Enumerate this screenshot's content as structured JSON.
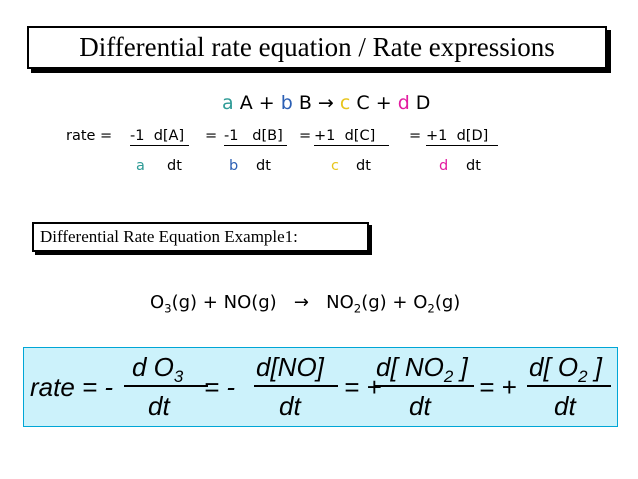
{
  "colors": {
    "a": "#2e9b96",
    "b": "#2b5fb4",
    "c": "#e8c51c",
    "d": "#e31ba0",
    "equation_bg": "#ccf2fb",
    "equation_border": "#00a6d6"
  },
  "title": "Differential rate equation / Rate expressions",
  "general_reaction": {
    "a": "a",
    "A": "A",
    "plus1": "+",
    "b": "b",
    "B": "B",
    "arrow": "→",
    "c": "c",
    "C": "C",
    "plus2": "+",
    "d": "d",
    "D": "D"
  },
  "rate_expr": {
    "label": "rate =",
    "term1_num": "-1",
    "term1_conc": "d[A]",
    "term1_den_coef": "a",
    "term1_den": "dt",
    "eq1": "=",
    "term2_num": "-1",
    "term2_conc": "d[B]",
    "term2_den_coef": "b",
    "term2_den": "dt",
    "eq2": "=",
    "term3_num": "+1",
    "term3_conc": "d[C]",
    "term3_den_coef": "c",
    "term3_den": "dt",
    "eq3": "=",
    "term4_num": "+1",
    "term4_conc": "d[D]",
    "term4_den_coef": "d",
    "term4_den": "dt"
  },
  "example_label": "Differential Rate Equation Example1:",
  "ozone_reaction": {
    "o3": "O",
    "o3_sub": "3",
    "o3_state": "(g) + NO(g)",
    "arrow": "→",
    "no2": "NO",
    "no2_sub": "2",
    "no2_state": "(g) + O",
    "o2_sub": "2",
    "o2_state": "(g)"
  },
  "equation": {
    "lhs": "rate = -",
    "t1_num": "d O",
    "t1_sub": "3",
    "t1_den": "dt",
    "eq1": "= -",
    "t2_num": "d[NO]",
    "t2_den": "dt",
    "eq2": "= +",
    "t3_num": "d[ NO",
    "t3_sub": "2",
    "t3_close": " ]",
    "t3_den": "dt",
    "eq3": "= +",
    "t4_num": "d[ O",
    "t4_sub": "2",
    "t4_close": " ]",
    "t4_den": "dt"
  }
}
